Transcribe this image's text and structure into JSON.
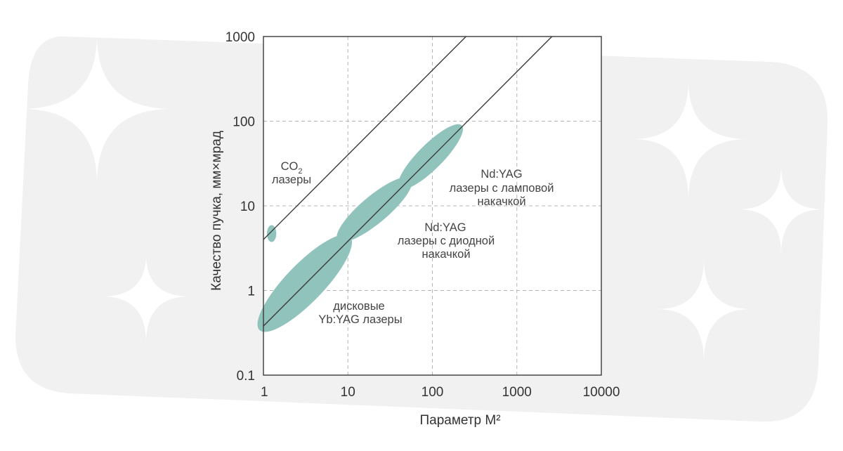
{
  "chart_data": {
    "type": "scatter",
    "x_scale": "log",
    "y_scale": "log",
    "xlim": [
      1,
      10000
    ],
    "ylim": [
      0.1,
      1000
    ],
    "xlabel": "Параметр M²",
    "ylabel": "Качество пучка, мм×мрад",
    "x_ticks": [
      "1",
      "10",
      "100",
      "1000",
      "10000"
    ],
    "y_ticks": [
      "0.1",
      "1",
      "10",
      "100",
      "1000"
    ],
    "grid": true,
    "reference_lines": [
      {
        "x": [
          1,
          250
        ],
        "y": [
          4,
          1000
        ]
      },
      {
        "x": [
          1,
          2600
        ],
        "y": [
          0.38,
          1000
        ]
      }
    ],
    "regions": [
      {
        "label": "CO2 лазеры",
        "center": [
          1.25,
          4.7
        ],
        "rx_decades": 0.055,
        "ry_decades": 0.1
      },
      {
        "label": "дисковые Yb:YAG лазеры",
        "from": [
          1,
          0.38
        ],
        "to": [
          9.5,
          3.9
        ]
      },
      {
        "label": "Nd:YAG лазеры с диодной накачкой",
        "from": [
          8.5,
          4.3
        ],
        "to": [
          50,
          19
        ]
      },
      {
        "label": "Nd:YAG лазеры с ламповой накачкой",
        "from": [
          45,
          18
        ],
        "to": [
          200,
          80
        ]
      }
    ],
    "annotations": {
      "co2_line1": "CO",
      "co2_sub": "2",
      "co2_line2": "лазеры",
      "disk_line1": "дисковые",
      "disk_line2": "Yb:YAG лазеры",
      "diode_line1": "Nd:YAG",
      "diode_line2": "лазеры с диодной",
      "diode_line3": "накачкой",
      "lamp_line1": "Nd:YAG",
      "lamp_line2": "лазеры с ламповой",
      "lamp_line3": "накачкой"
    },
    "colors": {
      "region": "#8fc3bb",
      "line": "#3a3a3a",
      "grid": "#b5b5b5",
      "background": "#f1f1f1"
    }
  }
}
